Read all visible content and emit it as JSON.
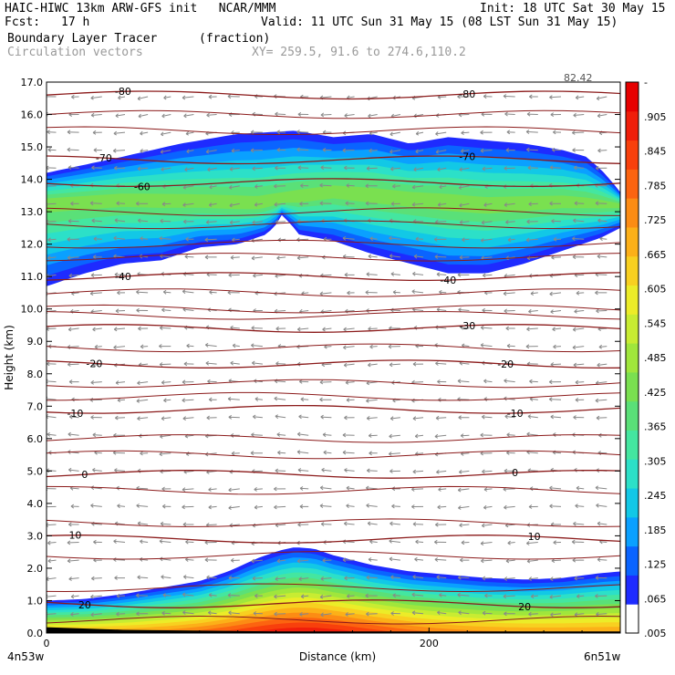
{
  "header": {
    "title_left": "HAIC-HIWC 13km ARW-GFS init   NCAR/MMM",
    "init": "Init: 18 UTC Sat 30 May 15",
    "fcst_label": "Fcst:",
    "fcst_value": "17 h",
    "valid": "Valid: 11 UTC Sun 31 May 15 (08 LST Sun 31 May 15)",
    "field_name": "Boundary Layer Tracer",
    "field_units": "(fraction)",
    "vector_name": "Circulation vectors",
    "xy_range": "XY= 259.5, 91.6 to 274.6,110.2",
    "corner_tag": "82.42"
  },
  "colors": {
    "contour_line": "#8b1a1a",
    "vector": "#888888",
    "fill_scale": [
      "#ffffff",
      "#1e2bff",
      "#0a64ff",
      "#0aa0ff",
      "#12c8e6",
      "#2ce0c8",
      "#44e6a0",
      "#5ae078",
      "#7ae050",
      "#a0e63c",
      "#c8ec32",
      "#ecec28",
      "#f8d020",
      "#fcb018",
      "#fc8c14",
      "#fc6410",
      "#f8400c",
      "#f01e0a",
      "#e60000"
    ]
  },
  "chart_data": {
    "type": "heatmap",
    "title": "Boundary Layer Tracer",
    "xlabel": "Distance (km)",
    "ylabel": "Height (km)",
    "xlim": [
      0,
      300
    ],
    "ylim": [
      0,
      17
    ],
    "x_ticks": [
      "0",
      "200"
    ],
    "x_tick_values": [
      0,
      200
    ],
    "x_end_labels": {
      "left": "4n53w",
      "right": "6n51w"
    },
    "y_ticks": [
      "0.0",
      "1.0",
      "2.0",
      "3.0",
      "4.0",
      "5.0",
      "6.0",
      "7.0",
      "8.0",
      "9.0",
      "10.0",
      "11.0",
      "12.0",
      "13.0",
      "14.0",
      "15.0",
      "16.0",
      "17.0"
    ],
    "colorbar": {
      "labels": [
        "-",
        ".905",
        ".845",
        ".785",
        ".725",
        ".665",
        ".605",
        ".545",
        ".485",
        ".425",
        ".365",
        ".305",
        ".245",
        ".185",
        ".125",
        ".065",
        ".005"
      ]
    },
    "tracer_layers": [
      {
        "name": "upper",
        "top": [
          [
            0,
            14.2
          ],
          [
            40,
            14.7
          ],
          [
            70,
            15.1
          ],
          [
            100,
            15.4
          ],
          [
            130,
            15.5
          ],
          [
            150,
            15.3
          ],
          [
            170,
            15.4
          ],
          [
            190,
            15.1
          ],
          [
            210,
            15.3
          ],
          [
            230,
            15.2
          ],
          [
            250,
            15.1
          ],
          [
            270,
            14.9
          ],
          [
            282,
            14.7
          ],
          [
            290,
            14.3
          ],
          [
            296,
            13.9
          ],
          [
            300,
            13.6
          ]
        ],
        "bottom": [
          [
            0,
            10.7
          ],
          [
            20,
            11.1
          ],
          [
            40,
            11.4
          ],
          [
            60,
            11.5
          ],
          [
            80,
            11.9
          ],
          [
            100,
            12.0
          ],
          [
            115,
            12.3
          ],
          [
            120,
            12.6
          ],
          [
            123,
            12.9
          ],
          [
            128,
            12.6
          ],
          [
            132,
            12.3
          ],
          [
            150,
            12.1
          ],
          [
            170,
            11.7
          ],
          [
            190,
            11.4
          ],
          [
            210,
            11.1
          ],
          [
            230,
            11.1
          ],
          [
            250,
            11.4
          ],
          [
            270,
            11.8
          ],
          [
            290,
            12.2
          ],
          [
            300,
            12.5
          ]
        ],
        "core": [
          [
            0,
            13.3
          ],
          [
            40,
            13.4
          ],
          [
            80,
            13.3
          ],
          [
            110,
            13.2
          ],
          [
            150,
            13.6
          ],
          [
            190,
            13.4
          ],
          [
            230,
            13.2
          ],
          [
            270,
            13.3
          ],
          [
            300,
            13.2
          ]
        ],
        "core_max": 0.42
      },
      {
        "name": "boundary",
        "top": [
          [
            0,
            1.0
          ],
          [
            20,
            1.05
          ],
          [
            40,
            1.2
          ],
          [
            60,
            1.4
          ],
          [
            80,
            1.6
          ],
          [
            95,
            1.9
          ],
          [
            110,
            2.3
          ],
          [
            122,
            2.55
          ],
          [
            130,
            2.65
          ],
          [
            140,
            2.6
          ],
          [
            150,
            2.4
          ],
          [
            170,
            2.1
          ],
          [
            190,
            1.9
          ],
          [
            210,
            1.8
          ],
          [
            230,
            1.7
          ],
          [
            250,
            1.65
          ],
          [
            270,
            1.7
          ],
          [
            290,
            1.85
          ],
          [
            300,
            1.9
          ]
        ],
        "bottom": [
          [
            0,
            0.0
          ],
          [
            300,
            0.0
          ]
        ],
        "peak_x": 135,
        "peak_max": 0.95
      }
    ],
    "contour_levels": [
      {
        "value": -80,
        "height": 16.6,
        "labels_at": [
          40,
          220
        ]
      },
      {
        "value": -70,
        "height": 14.6,
        "labels_at": [
          30,
          220
        ]
      },
      {
        "value": -60,
        "height": 13.9,
        "labels_at": [
          50
        ]
      },
      {
        "value": -40,
        "height": 11.0,
        "labels_at": [
          40,
          210
        ]
      },
      {
        "value": -30,
        "height": 9.4,
        "labels_at": [
          220
        ]
      },
      {
        "value": -20,
        "height": 8.3,
        "labels_at": [
          25,
          240
        ]
      },
      {
        "value": -10,
        "height": 6.9,
        "labels_at": [
          15,
          245
        ]
      },
      {
        "value": 0,
        "height": 4.9,
        "labels_at": [
          20,
          245
        ]
      },
      {
        "value": 10,
        "height": 2.9,
        "labels_at": [
          15,
          255
        ]
      },
      {
        "value": 20,
        "height": 0.9,
        "labels_at": [
          20,
          250
        ]
      }
    ],
    "isotherm_extra_heights": [
      16.0,
      15.5,
      13.0,
      12.6,
      12.0,
      11.6,
      10.5,
      10.0,
      9.8,
      8.8,
      7.7,
      7.3,
      6.0,
      5.5,
      4.4,
      3.4,
      2.4,
      1.4,
      0.4
    ],
    "grid": false
  }
}
